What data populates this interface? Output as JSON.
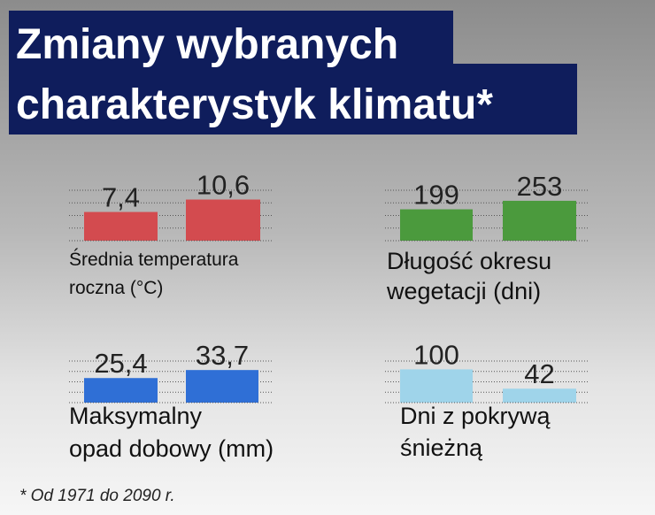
{
  "title": [
    "Zmiany wybranych",
    "charakterystyk klimatu*"
  ],
  "footnote": "* Od 1971 do 2090 r.",
  "chart_data": [
    {
      "type": "bar",
      "label": [
        "Średnia temperatura",
        "roczna (°C)"
      ],
      "values": [
        7.4,
        10.6
      ],
      "value_labels": [
        "7,4",
        "10,6"
      ],
      "color": "#d34b4f",
      "ylim": [
        0,
        13
      ],
      "grid": true
    },
    {
      "type": "bar",
      "label": [
        "Długość okresu",
        "wegetacji (dni)"
      ],
      "values": [
        199,
        253
      ],
      "color": "#4b9a3d",
      "ylim": [
        0,
        320
      ],
      "grid": true
    },
    {
      "type": "bar",
      "label": [
        "Maksymalny",
        "opad dobowy (mm)"
      ],
      "values": [
        25.4,
        33.7
      ],
      "value_labels": [
        "25,4",
        "33,7"
      ],
      "color": "#2f6fd6",
      "ylim": [
        0,
        43
      ],
      "grid": true
    },
    {
      "type": "bar",
      "label": [
        "Dni z pokrywą",
        "śnieżną"
      ],
      "values": [
        100,
        42
      ],
      "color": "#9fd4ea",
      "ylim": [
        0,
        125
      ],
      "grid": true
    }
  ]
}
